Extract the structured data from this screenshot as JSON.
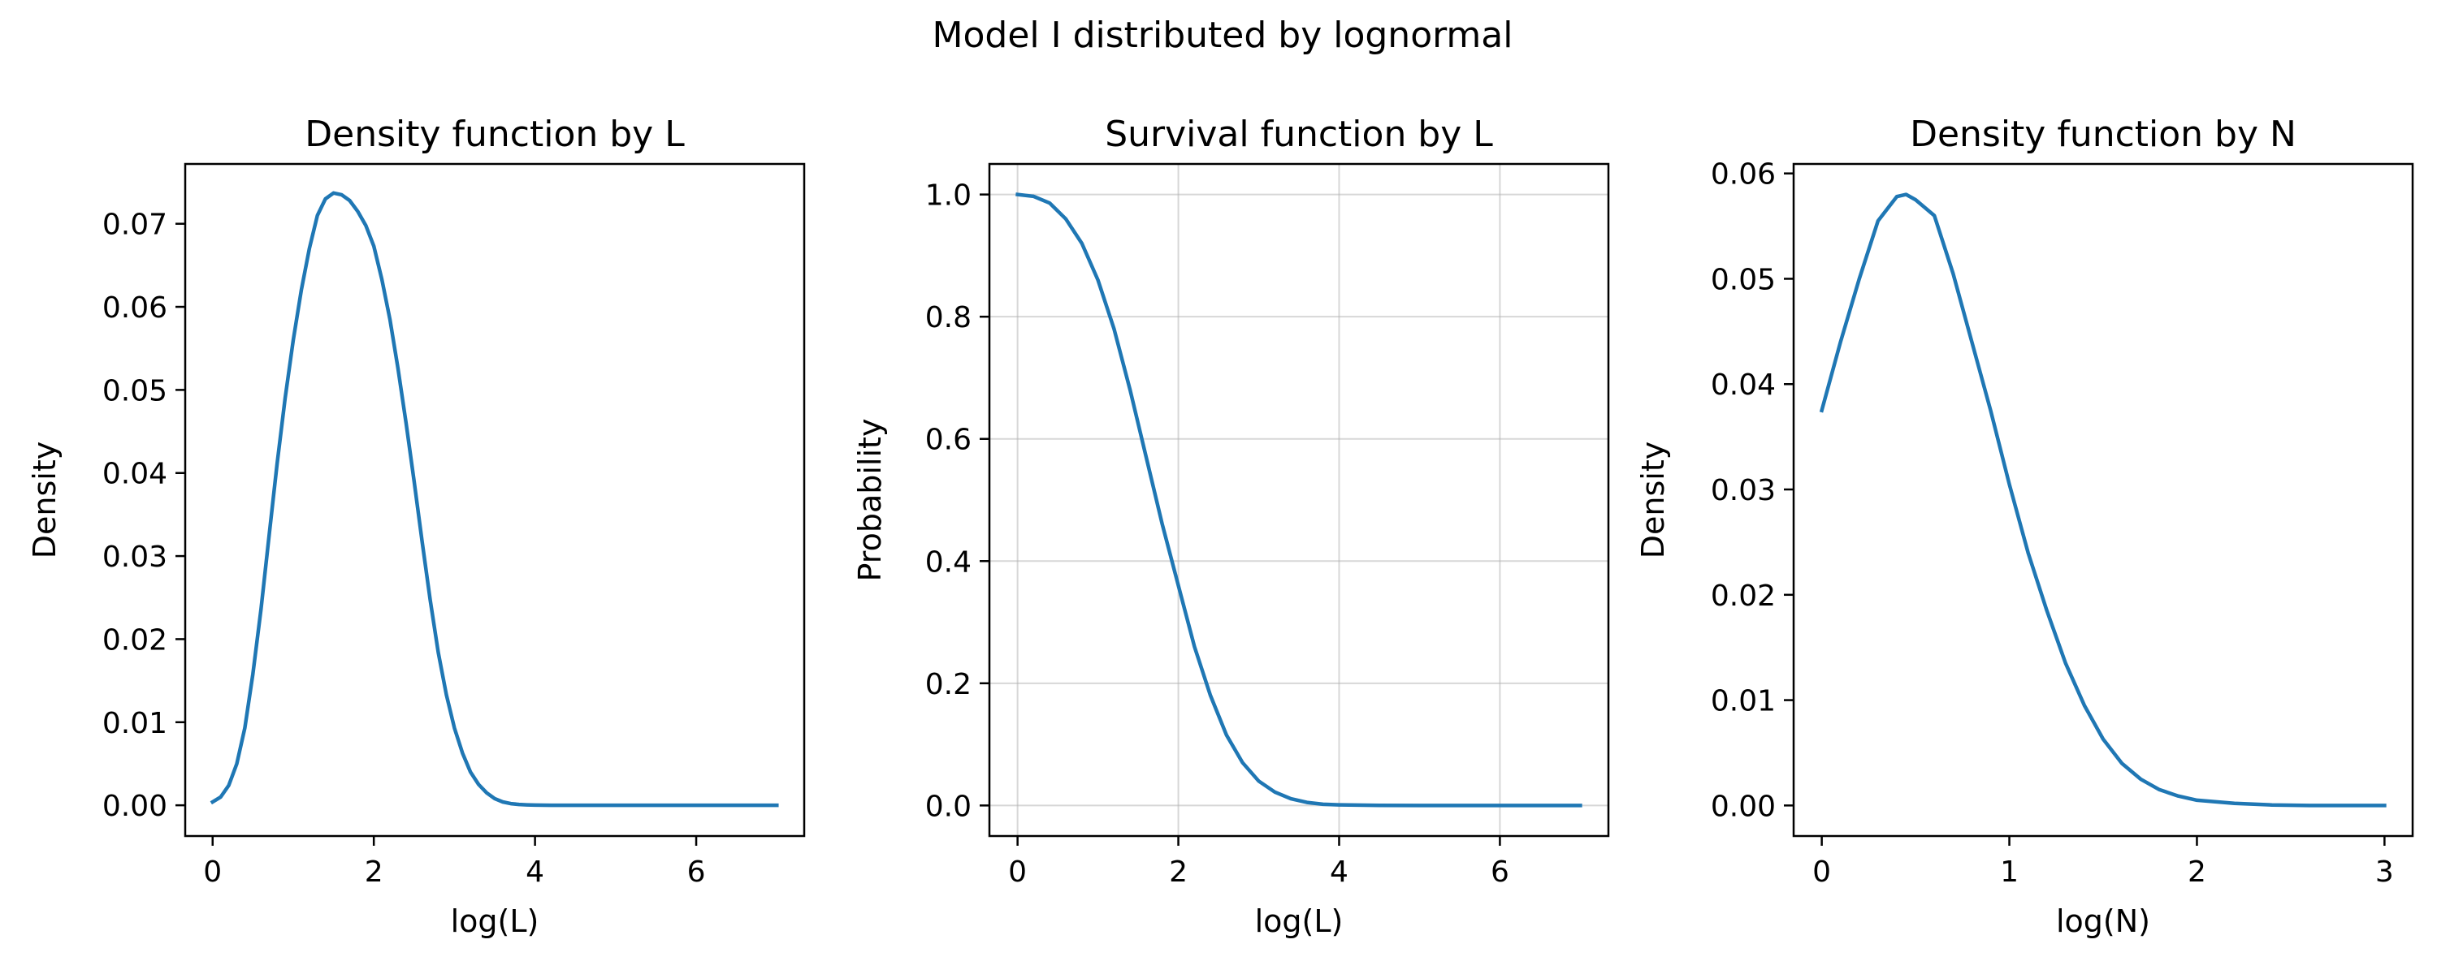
{
  "figure": {
    "title": "Model I distributed by lognormal",
    "line_color": "#1f77b4"
  },
  "chart_data": [
    {
      "type": "line",
      "title": "Density function by L",
      "xlabel": "log(L)",
      "ylabel": "Density",
      "xlim": [
        -0.34,
        7.34
      ],
      "ylim": [
        -0.0037,
        0.0772
      ],
      "xticks": [
        0,
        2,
        4,
        6
      ],
      "xtick_labels": [
        "0",
        "2",
        "4",
        "6"
      ],
      "yticks": [
        0,
        0.01,
        0.02,
        0.03,
        0.04,
        0.05,
        0.06,
        0.07
      ],
      "ytick_labels": [
        "0.00",
        "0.01",
        "0.02",
        "0.03",
        "0.04",
        "0.05",
        "0.06",
        "0.07"
      ],
      "grid": false,
      "series": [
        {
          "x": [
            0,
            0.1,
            0.2,
            0.3,
            0.4,
            0.5,
            0.6,
            0.7,
            0.8,
            0.9,
            1.0,
            1.1,
            1.2,
            1.3,
            1.4,
            1.5,
            1.6,
            1.7,
            1.8,
            1.9,
            2.0,
            2.1,
            2.2,
            2.3,
            2.4,
            2.5,
            2.6,
            2.7,
            2.8,
            2.9,
            3.0,
            3.1,
            3.2,
            3.3,
            3.4,
            3.5,
            3.6,
            3.7,
            3.8,
            3.9,
            4.0,
            4.2,
            4.5,
            5.0,
            5.5,
            6.0,
            6.5,
            7.0
          ],
          "y": [
            0.0004,
            0.001,
            0.0024,
            0.005,
            0.0093,
            0.0158,
            0.0236,
            0.0324,
            0.0411,
            0.049,
            0.056,
            0.062,
            0.067,
            0.071,
            0.073,
            0.0737,
            0.0735,
            0.0728,
            0.0715,
            0.0698,
            0.0673,
            0.0633,
            0.0585,
            0.0526,
            0.046,
            0.039,
            0.0317,
            0.0247,
            0.0184,
            0.0133,
            0.0093,
            0.0063,
            0.004,
            0.0025,
            0.0015,
            0.0008,
            0.0004,
            0.0002,
            0.0001,
            5e-05,
            2e-05,
            0,
            0,
            0,
            0,
            0,
            0,
            0
          ]
        }
      ]
    },
    {
      "type": "line",
      "title": "Survival function by L",
      "xlabel": "log(L)",
      "ylabel": "Probability",
      "xlim": [
        -0.35,
        7.35
      ],
      "ylim": [
        -0.05,
        1.05
      ],
      "xticks": [
        0,
        2,
        4,
        6
      ],
      "xtick_labels": [
        "0",
        "2",
        "4",
        "6"
      ],
      "yticks": [
        0,
        0.2,
        0.4,
        0.6,
        0.8,
        1.0
      ],
      "ytick_labels": [
        "0.0",
        "0.2",
        "0.4",
        "0.6",
        "0.8",
        "1.0"
      ],
      "grid": true,
      "series": [
        {
          "x": [
            0,
            0.2,
            0.4,
            0.6,
            0.8,
            1.0,
            1.2,
            1.4,
            1.6,
            1.8,
            2.0,
            2.2,
            2.4,
            2.6,
            2.8,
            3.0,
            3.2,
            3.4,
            3.6,
            3.8,
            4.0,
            4.5,
            5.0,
            5.5,
            6.0,
            6.5,
            7.0
          ],
          "y": [
            1.0,
            0.997,
            0.986,
            0.96,
            0.92,
            0.86,
            0.78,
            0.68,
            0.57,
            0.46,
            0.36,
            0.26,
            0.18,
            0.115,
            0.07,
            0.04,
            0.022,
            0.011,
            0.005,
            0.002,
            0.001,
            0.0001,
            0,
            0,
            0,
            0,
            0
          ]
        }
      ]
    },
    {
      "type": "line",
      "title": "Density function by N",
      "xlabel": "log(N)",
      "ylabel": "Density",
      "xlim": [
        -0.15,
        3.15
      ],
      "ylim": [
        -0.0029,
        0.0609
      ],
      "xticks": [
        0,
        1,
        2,
        3
      ],
      "xtick_labels": [
        "0",
        "1",
        "2",
        "3"
      ],
      "yticks": [
        0,
        0.01,
        0.02,
        0.03,
        0.04,
        0.05,
        0.06
      ],
      "ytick_labels": [
        "0.00",
        "0.01",
        "0.02",
        "0.03",
        "0.04",
        "0.05",
        "0.06"
      ],
      "grid": false,
      "series": [
        {
          "x": [
            0,
            0.1,
            0.2,
            0.3,
            0.4,
            0.45,
            0.5,
            0.6,
            0.7,
            0.8,
            0.9,
            1.0,
            1.1,
            1.2,
            1.3,
            1.4,
            1.5,
            1.6,
            1.7,
            1.8,
            1.9,
            2.0,
            2.2,
            2.4,
            2.6,
            2.8,
            3.0
          ],
          "y": [
            0.0375,
            0.044,
            0.05,
            0.0555,
            0.0578,
            0.058,
            0.0575,
            0.056,
            0.0505,
            0.044,
            0.0375,
            0.0305,
            0.024,
            0.0185,
            0.0135,
            0.0095,
            0.0063,
            0.004,
            0.0025,
            0.0015,
            0.0009,
            0.0005,
            0.0002,
            5e-05,
            0,
            0,
            0
          ]
        }
      ]
    }
  ]
}
